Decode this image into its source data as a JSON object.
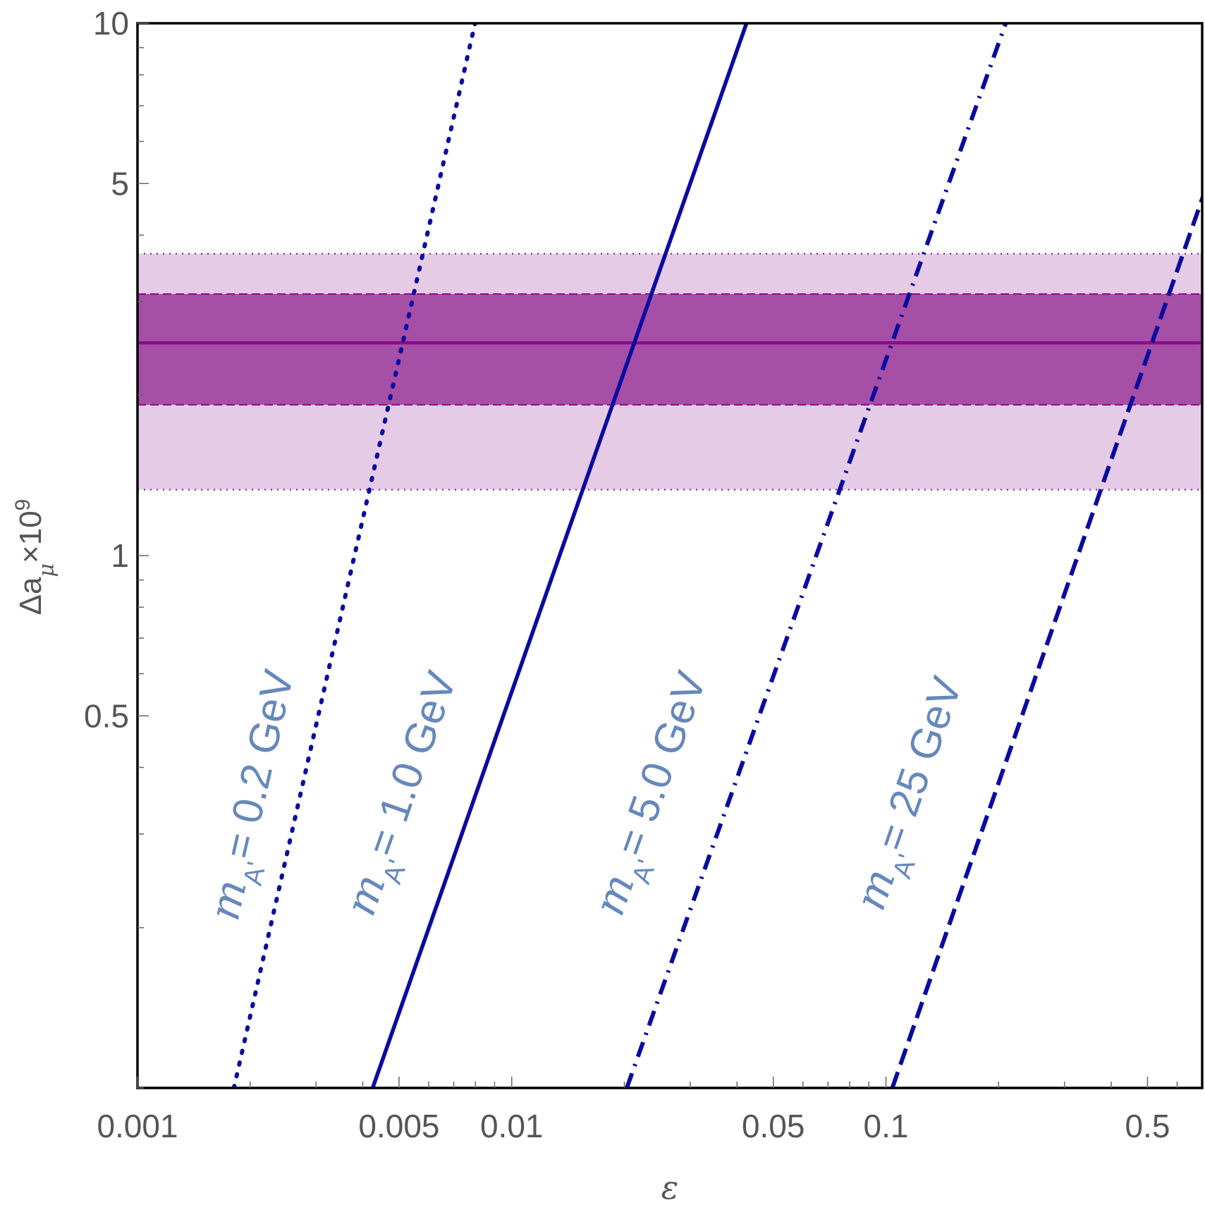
{
  "chart_data": {
    "type": "line",
    "title": "",
    "xlabel": "ε",
    "ylabel": {
      "main": "Δa",
      "sub": "μ",
      "tail": "×10",
      "sup": "9"
    },
    "x_scale": "log",
    "y_scale": "log",
    "xlim": [
      0.001,
      0.7
    ],
    "ylim": [
      0.1,
      10
    ],
    "x_ticks": [
      {
        "value": 0.001,
        "label": "0.001"
      },
      {
        "value": 0.005,
        "label": "0.005"
      },
      {
        "value": 0.01,
        "label": "0.01"
      },
      {
        "value": 0.05,
        "label": "0.05"
      },
      {
        "value": 0.1,
        "label": "0.1"
      },
      {
        "value": 0.5,
        "label": "0.5"
      }
    ],
    "y_ticks": [
      {
        "value": 10,
        "label": "10"
      },
      {
        "value": 5,
        "label": "5"
      },
      {
        "value": 1,
        "label": "1"
      },
      {
        "value": 0.5,
        "label": "0.5"
      }
    ],
    "band": {
      "central": 2.51,
      "inner": [
        1.92,
        3.1
      ],
      "outner": [
        1.33,
        3.69
      ],
      "color": "#8a0a8a",
      "inner_fill": "#a64fa6",
      "outer_fill": "#e6cbe6"
    },
    "series": [
      {
        "label": {
          "pre": "m",
          "sub": "A'",
          "post": "= 0.2 GeV"
        },
        "style": "dotted",
        "x": [
          0.00181,
          0.00798
        ],
        "y": [
          0.1,
          10
        ],
        "label_at": [
          0.0022,
          0.35
        ]
      },
      {
        "label": {
          "pre": "m",
          "sub": "A'",
          "post": "= 1.0 GeV"
        },
        "style": "solid",
        "x": [
          0.00425,
          0.0424
        ],
        "y": [
          0.1,
          10
        ],
        "label_at": [
          0.0055,
          0.35
        ]
      },
      {
        "label": {
          "pre": "m",
          "sub": "A'",
          "post": "= 5.0 GeV"
        },
        "style": "dashdot",
        "x": [
          0.0203,
          0.209
        ],
        "y": [
          0.1,
          10
        ],
        "label_at": [
          0.0255,
          0.35
        ]
      },
      {
        "label": {
          "pre": "m",
          "sub": "A'",
          "post": "= 25 GeV"
        },
        "style": "dashed",
        "x": [
          0.104,
          1.02
        ],
        "y": [
          0.1,
          10
        ],
        "label_at": [
          0.125,
          0.35
        ]
      }
    ],
    "line_color": "#0a0aa0",
    "grid": false,
    "legend": "none"
  }
}
